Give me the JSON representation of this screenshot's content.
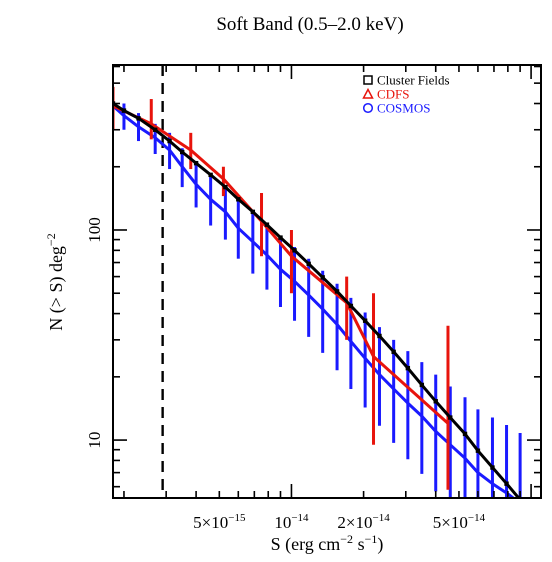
{
  "chart_data": {
    "type": "line",
    "title": "Soft Band (0.5–2.0 keV)",
    "xlabel_parts": {
      "pre": "S (erg cm",
      "exp1": "−2",
      "mid": " s",
      "exp2": "−1",
      "post": ")"
    },
    "ylabel_parts": {
      "pre": "N (> S) deg",
      "exp": "−2"
    },
    "x_scale": "log",
    "y_scale": "log",
    "xlim": [
      1.8e-15,
      1.1e-13
    ],
    "ylim": [
      5.3,
      610
    ],
    "grid": false,
    "legend_position": "top-right",
    "x_ticks": [
      {
        "value": 5e-15,
        "mant": "5×10",
        "exp": "−15"
      },
      {
        "value": 1e-14,
        "mant": "10",
        "exp": "−14"
      },
      {
        "value": 2e-14,
        "mant": "2×10",
        "exp": "−14"
      },
      {
        "value": 5e-14,
        "mant": "5×10",
        "exp": "−14"
      }
    ],
    "y_ticks": [
      {
        "value": 10,
        "label": "10"
      },
      {
        "value": 100,
        "label": "100"
      }
    ],
    "flux_limit_line": {
      "x": 2.9e-15
    },
    "series": [
      {
        "name": "Cluster Fields",
        "color": "#000000",
        "marker": "square",
        "x": [
          1.8e-15,
          2e-15,
          2.3e-15,
          2.7e-15,
          3.1e-15,
          3.5e-15,
          4e-15,
          4.6e-15,
          5.3e-15,
          6e-15,
          6.9e-15,
          7.9e-15,
          9e-15,
          1.03e-14,
          1.18e-14,
          1.35e-14,
          1.55e-14,
          1.77e-14,
          2.03e-14,
          2.33e-14,
          2.67e-14,
          3.06e-14,
          3.5e-14,
          4e-14,
          4.6e-14,
          5.3e-14,
          6e-14,
          6.9e-14,
          7.9e-14,
          9e-14
        ],
        "y": [
          400,
          370,
          340,
          300,
          265,
          235,
          208,
          183,
          160,
          140,
          122,
          106,
          92,
          80,
          69,
          59.5,
          51,
          43.5,
          37,
          31.3,
          26.3,
          22,
          18.3,
          15.3,
          12.8,
          10.7,
          8.9,
          7.4,
          6.2,
          5.2
        ]
      },
      {
        "name": "CDFS",
        "color": "#e8140c",
        "marker": "triangle",
        "x": [
          1.8e-15,
          2.6e-15,
          3.8e-15,
          5.2e-15,
          7.5e-15,
          1e-14,
          1.7e-14,
          2.2e-14,
          4.5e-14
        ],
        "y": [
          390,
          320,
          240,
          175,
          110,
          75,
          45,
          25,
          12
        ],
        "err_low": [
          300,
          270,
          195,
          145,
          75,
          50,
          30,
          9.5,
          5.8
        ],
        "err_high": [
          480,
          420,
          290,
          200,
          150,
          100,
          60,
          50,
          35
        ]
      },
      {
        "name": "COSMOS",
        "color": "#1a1aff",
        "marker": "circle",
        "x": [
          1.8e-15,
          2e-15,
          2.3e-15,
          2.7e-15,
          3.1e-15,
          3.5e-15,
          4e-15,
          4.6e-15,
          5.3e-15,
          6e-15,
          6.9e-15,
          7.9e-15,
          9e-15,
          1.03e-14,
          1.18e-14,
          1.35e-14,
          1.55e-14,
          1.77e-14,
          2.03e-14,
          2.33e-14,
          2.67e-14,
          3.06e-14,
          3.5e-14,
          4e-14,
          4.6e-14,
          5.3e-14,
          6e-14,
          6.9e-14,
          7.9e-14,
          9e-14
        ],
        "y": [
          390,
          350,
          310,
          275,
          240,
          200,
          165,
          140,
          122,
          102,
          88,
          76,
          65,
          57,
          49,
          42,
          35.5,
          29.5,
          24.5,
          20.5,
          17.5,
          15,
          13,
          11,
          9.5,
          8.2,
          7,
          6.2,
          5.6,
          5.0
        ],
        "err_low": [
          340,
          300,
          265,
          230,
          195,
          160,
          128,
          105,
          90,
          73,
          62,
          52,
          43,
          37,
          31,
          26,
          21.5,
          17.5,
          14.3,
          11.7,
          9.7,
          8.1,
          6.9,
          5.7,
          5.2,
          5.0,
          5.0,
          5.0,
          5.0,
          5.0
        ],
        "err_high": [
          440,
          400,
          360,
          320,
          290,
          245,
          210,
          180,
          160,
          138,
          120,
          106,
          93,
          83,
          73,
          64,
          55.5,
          47.5,
          40.5,
          34.5,
          30,
          26.5,
          23.5,
          20.5,
          18,
          16,
          14,
          12.8,
          11.8,
          10.8
        ]
      }
    ]
  }
}
